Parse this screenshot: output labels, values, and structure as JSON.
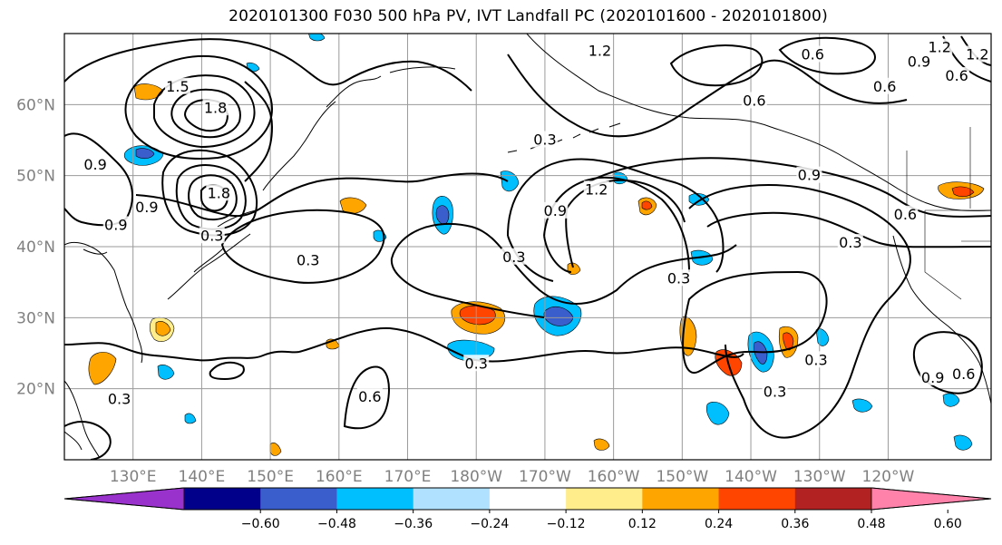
{
  "title": "2020101300 F030 500 hPa PV, IVT Landfall PC (2020101600 - 2020101800)",
  "map": {
    "lon_range": [
      120,
      255
    ],
    "lat_range": [
      10,
      70
    ],
    "lat_ticks": [
      {
        "lat": 60,
        "label": "60°N"
      },
      {
        "lat": 50,
        "label": "50°N"
      },
      {
        "lat": 40,
        "label": "40°N"
      },
      {
        "lat": 30,
        "label": "30°N"
      },
      {
        "lat": 20,
        "label": "20°N"
      }
    ],
    "lon_ticks": [
      {
        "lon": 130,
        "label": "130°E"
      },
      {
        "lon": 140,
        "label": "140°E"
      },
      {
        "lon": 150,
        "label": "150°E"
      },
      {
        "lon": 160,
        "label": "160°E"
      },
      {
        "lon": 170,
        "label": "170°E"
      },
      {
        "lon": 180,
        "label": "180°W"
      },
      {
        "lon": 190,
        "label": "170°W"
      },
      {
        "lon": 200,
        "label": "160°W"
      },
      {
        "lon": 210,
        "label": "150°W"
      },
      {
        "lon": 220,
        "label": "140°W"
      },
      {
        "lon": 230,
        "label": "130°W"
      },
      {
        "lon": 240,
        "label": "120°W"
      }
    ],
    "grid": true
  },
  "colorbar": {
    "colors": [
      "#9932cc",
      "#00008b",
      "#3a5fcd",
      "#00bfff",
      "#b0e2ff",
      "#ffffff",
      "#ffec8b",
      "#ffa500",
      "#ff4500",
      "#b22222",
      "#ff82ab"
    ],
    "tick_labels": [
      "−0.60",
      "−0.48",
      "−0.36",
      "−0.24",
      "−0.12",
      "0.12",
      "0.24",
      "0.36",
      "0.48",
      "0.60"
    ],
    "extend": "both"
  },
  "contour_labels": [
    {
      "text": "0.3",
      "lon": 155.5,
      "lat": 38.0
    },
    {
      "text": "0.3",
      "lon": 185.5,
      "lat": 38.5
    },
    {
      "text": "0.3",
      "lon": 209.5,
      "lat": 35.5
    },
    {
      "text": "0.3",
      "lon": 234.5,
      "lat": 40.5
    },
    {
      "text": "0.3",
      "lon": 180.0,
      "lat": 23.5
    },
    {
      "text": "0.3",
      "lon": 223.5,
      "lat": 19.5
    },
    {
      "text": "0.3",
      "lon": 190.0,
      "lat": 55.0
    },
    {
      "text": "0.3",
      "lon": 128.0,
      "lat": 18.5
    },
    {
      "text": "0.3",
      "lon": 141.5,
      "lat": 41.5
    },
    {
      "text": "0.3",
      "lon": 229.5,
      "lat": 24.0
    },
    {
      "text": "0.6",
      "lon": 164.5,
      "lat": 18.8
    },
    {
      "text": "0.6",
      "lon": 239.5,
      "lat": 62.5
    },
    {
      "text": "0.6",
      "lon": 242.5,
      "lat": 44.5
    },
    {
      "text": "0.6",
      "lon": 229.0,
      "lat": 67.0
    },
    {
      "text": "0.6",
      "lon": 220.5,
      "lat": 60.5
    },
    {
      "text": "0.6",
      "lon": 251.0,
      "lat": 22.0
    },
    {
      "text": "0.6",
      "lon": 250.0,
      "lat": 64.0
    },
    {
      "text": "0.9",
      "lon": 127.5,
      "lat": 43.0
    },
    {
      "text": "0.9",
      "lon": 132.0,
      "lat": 45.5
    },
    {
      "text": "0.9",
      "lon": 124.5,
      "lat": 51.5
    },
    {
      "text": "0.9",
      "lon": 191.5,
      "lat": 45.0
    },
    {
      "text": "0.9",
      "lon": 244.5,
      "lat": 66.0
    },
    {
      "text": "0.9",
      "lon": 228.5,
      "lat": 50.0
    },
    {
      "text": "0.9",
      "lon": 246.5,
      "lat": 21.5
    },
    {
      "text": "1.2",
      "lon": 197.5,
      "lat": 48.0
    },
    {
      "text": "1.2",
      "lon": 247.5,
      "lat": 68.0
    },
    {
      "text": "1.2",
      "lon": 253.0,
      "lat": 67.0
    },
    {
      "text": "1.5",
      "lon": 136.5,
      "lat": 62.5
    },
    {
      "text": "1.8",
      "lon": 142.0,
      "lat": 59.5
    },
    {
      "text": "1.8",
      "lon": 142.5,
      "lat": 47.5
    },
    {
      "text": "1.2",
      "lon": 198.0,
      "lat": 67.5
    }
  ]
}
